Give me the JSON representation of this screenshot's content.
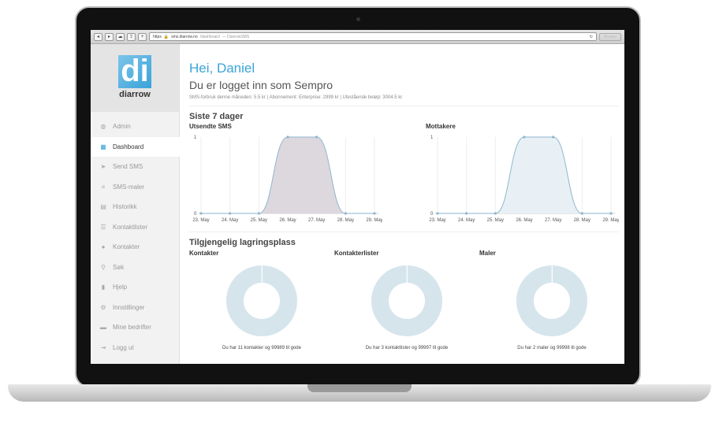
{
  "browser": {
    "protocol": "https",
    "domain": "sms.diarrow.no",
    "path": "/dashboard",
    "title": "— DiarrowSMS",
    "reader": "Reader"
  },
  "logo": {
    "text": "diarrow",
    "mark": "di"
  },
  "sidebar": {
    "items": [
      {
        "label": "Admin",
        "icon": "globe-icon",
        "glyph": "◍"
      },
      {
        "label": "Dashboard",
        "icon": "dashboard-icon",
        "glyph": "▦",
        "active": true
      },
      {
        "label": "Send SMS",
        "icon": "send-icon",
        "glyph": "➤"
      },
      {
        "label": "SMS-maler",
        "icon": "template-icon",
        "glyph": "≡"
      },
      {
        "label": "Historikk",
        "icon": "calendar-icon",
        "glyph": "▤"
      },
      {
        "label": "Kontaktlister",
        "icon": "list-icon",
        "glyph": "☰"
      },
      {
        "label": "Kontakter",
        "icon": "user-icon",
        "glyph": "●"
      },
      {
        "label": "Søk",
        "icon": "search-icon",
        "glyph": "⚲"
      },
      {
        "label": "Hjelp",
        "icon": "book-icon",
        "glyph": "▮"
      },
      {
        "label": "Innstillinger",
        "icon": "gear-icon",
        "glyph": "⚙"
      },
      {
        "label": "Mine bedrifter",
        "icon": "briefcase-icon",
        "glyph": "▬"
      },
      {
        "label": "Logg ut",
        "icon": "logout-icon",
        "glyph": "⇥"
      }
    ]
  },
  "main": {
    "greeting": "Hei, Daniel",
    "subtitle": "Du er logget inn som Sempro",
    "meta": "SMS-forbruk denne måneden: 5.5 kr | Abonnement: Enterprise: 2999 kr | Utestående beløp: 3004.5 kr",
    "section1": "Siste 7 dager",
    "section2": "Tilgjengelig lagringsplass"
  },
  "chart_data": [
    {
      "type": "area",
      "title": "Utsendte SMS",
      "categories": [
        "23. May",
        "24. May",
        "25. May",
        "26. May",
        "27. May",
        "28. May",
        "29. May"
      ],
      "values": [
        0,
        0,
        0,
        1,
        1,
        0,
        0
      ],
      "ylim": [
        0,
        1
      ],
      "yticks": [
        "0",
        "1"
      ],
      "fill": "#ddd8de",
      "line": "#8fb6cf"
    },
    {
      "type": "area",
      "title": "Mottakere",
      "categories": [
        "23. May",
        "24. May",
        "25. May",
        "26. May",
        "27. May",
        "28. May",
        "29. May"
      ],
      "values": [
        0,
        0,
        0,
        1,
        1,
        0,
        0
      ],
      "ylim": [
        0,
        1
      ],
      "yticks": [
        "0",
        "1"
      ],
      "fill": "#e8f0f5",
      "line": "#8fb6cf"
    }
  ],
  "storage": [
    {
      "title": "Kontakter",
      "used": 11,
      "free": 99989,
      "caption": "Du har 11 kontakter og 99989 til gode"
    },
    {
      "title": "Kontakterlister",
      "used": 3,
      "free": 99997,
      "caption": "Du har 3 kontaktlister og 99997 til gode"
    },
    {
      "title": "Maler",
      "used": 2,
      "free": 99998,
      "caption": "Du har 2 maler og 99998 til gode"
    }
  ],
  "colors": {
    "accent": "#3aa3d9",
    "donut": "#d6e5ec"
  }
}
